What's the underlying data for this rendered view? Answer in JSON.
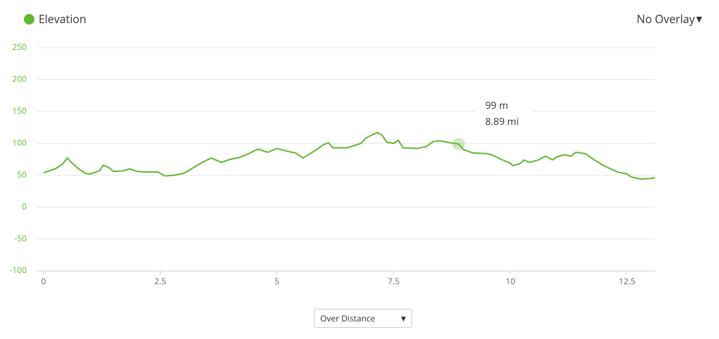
{
  "chart_data": {
    "type": "line",
    "title": "Elevation",
    "series": [
      {
        "name": "Elevation",
        "color": "#5fb832",
        "x": [
          0,
          0.25,
          0.4,
          0.51,
          0.6,
          0.75,
          0.9,
          1.0,
          1.2,
          1.28,
          1.4,
          1.5,
          1.7,
          1.85,
          2.0,
          2.2,
          2.45,
          2.6,
          2.8,
          3.0,
          3.1,
          3.3,
          3.5,
          3.6,
          3.75,
          3.8,
          4.0,
          4.2,
          4.4,
          4.5,
          4.6,
          4.8,
          5.0,
          5.2,
          5.4,
          5.56,
          5.8,
          6.0,
          6.1,
          6.2,
          6.5,
          6.8,
          6.9,
          7.0,
          7.15,
          7.25,
          7.35,
          7.5,
          7.6,
          7.7,
          8.0,
          8.2,
          8.35,
          8.5,
          8.7,
          8.89,
          9.0,
          9.2,
          9.5,
          9.6,
          9.8,
          10.0,
          10.05,
          10.2,
          10.3,
          10.4,
          10.6,
          10.75,
          10.9,
          11.0,
          11.15,
          11.3,
          11.4,
          11.6,
          11.8,
          12.0,
          12.3,
          12.5,
          12.6,
          12.8,
          13.0,
          13.1
        ],
        "values": [
          54,
          60,
          67,
          77,
          70,
          60,
          53,
          52,
          57,
          66,
          62,
          56,
          57,
          60,
          56,
          55,
          55,
          49,
          50,
          53,
          57,
          66,
          74,
          77,
          72,
          70,
          75,
          78,
          84,
          88,
          91,
          86,
          92,
          88,
          85,
          77,
          88,
          98,
          101,
          93,
          93,
          100,
          108,
          112,
          117,
          113,
          102,
          100,
          105,
          93,
          92,
          95,
          103,
          104,
          101,
          99,
          90,
          85,
          84,
          82,
          75,
          69,
          65,
          68,
          74,
          70,
          74,
          80,
          74,
          79,
          82,
          80,
          86,
          84,
          74,
          65,
          55,
          52,
          47,
          44,
          45,
          46
        ]
      }
    ],
    "xlim": [
      0,
      13.1
    ],
    "xticks": [
      0,
      2.5,
      5,
      7.5,
      10,
      12.5
    ],
    "ylim": [
      -100,
      250
    ],
    "yticks": [
      -100,
      -50,
      0,
      50,
      100,
      150,
      200,
      250
    ],
    "grid": true,
    "highlight": {
      "x": 8.89,
      "y": 99,
      "labels": [
        "99 m",
        "8.89 mi"
      ]
    },
    "overlay_menu": "No Overlay",
    "x_mode_select": "Over Distance"
  }
}
